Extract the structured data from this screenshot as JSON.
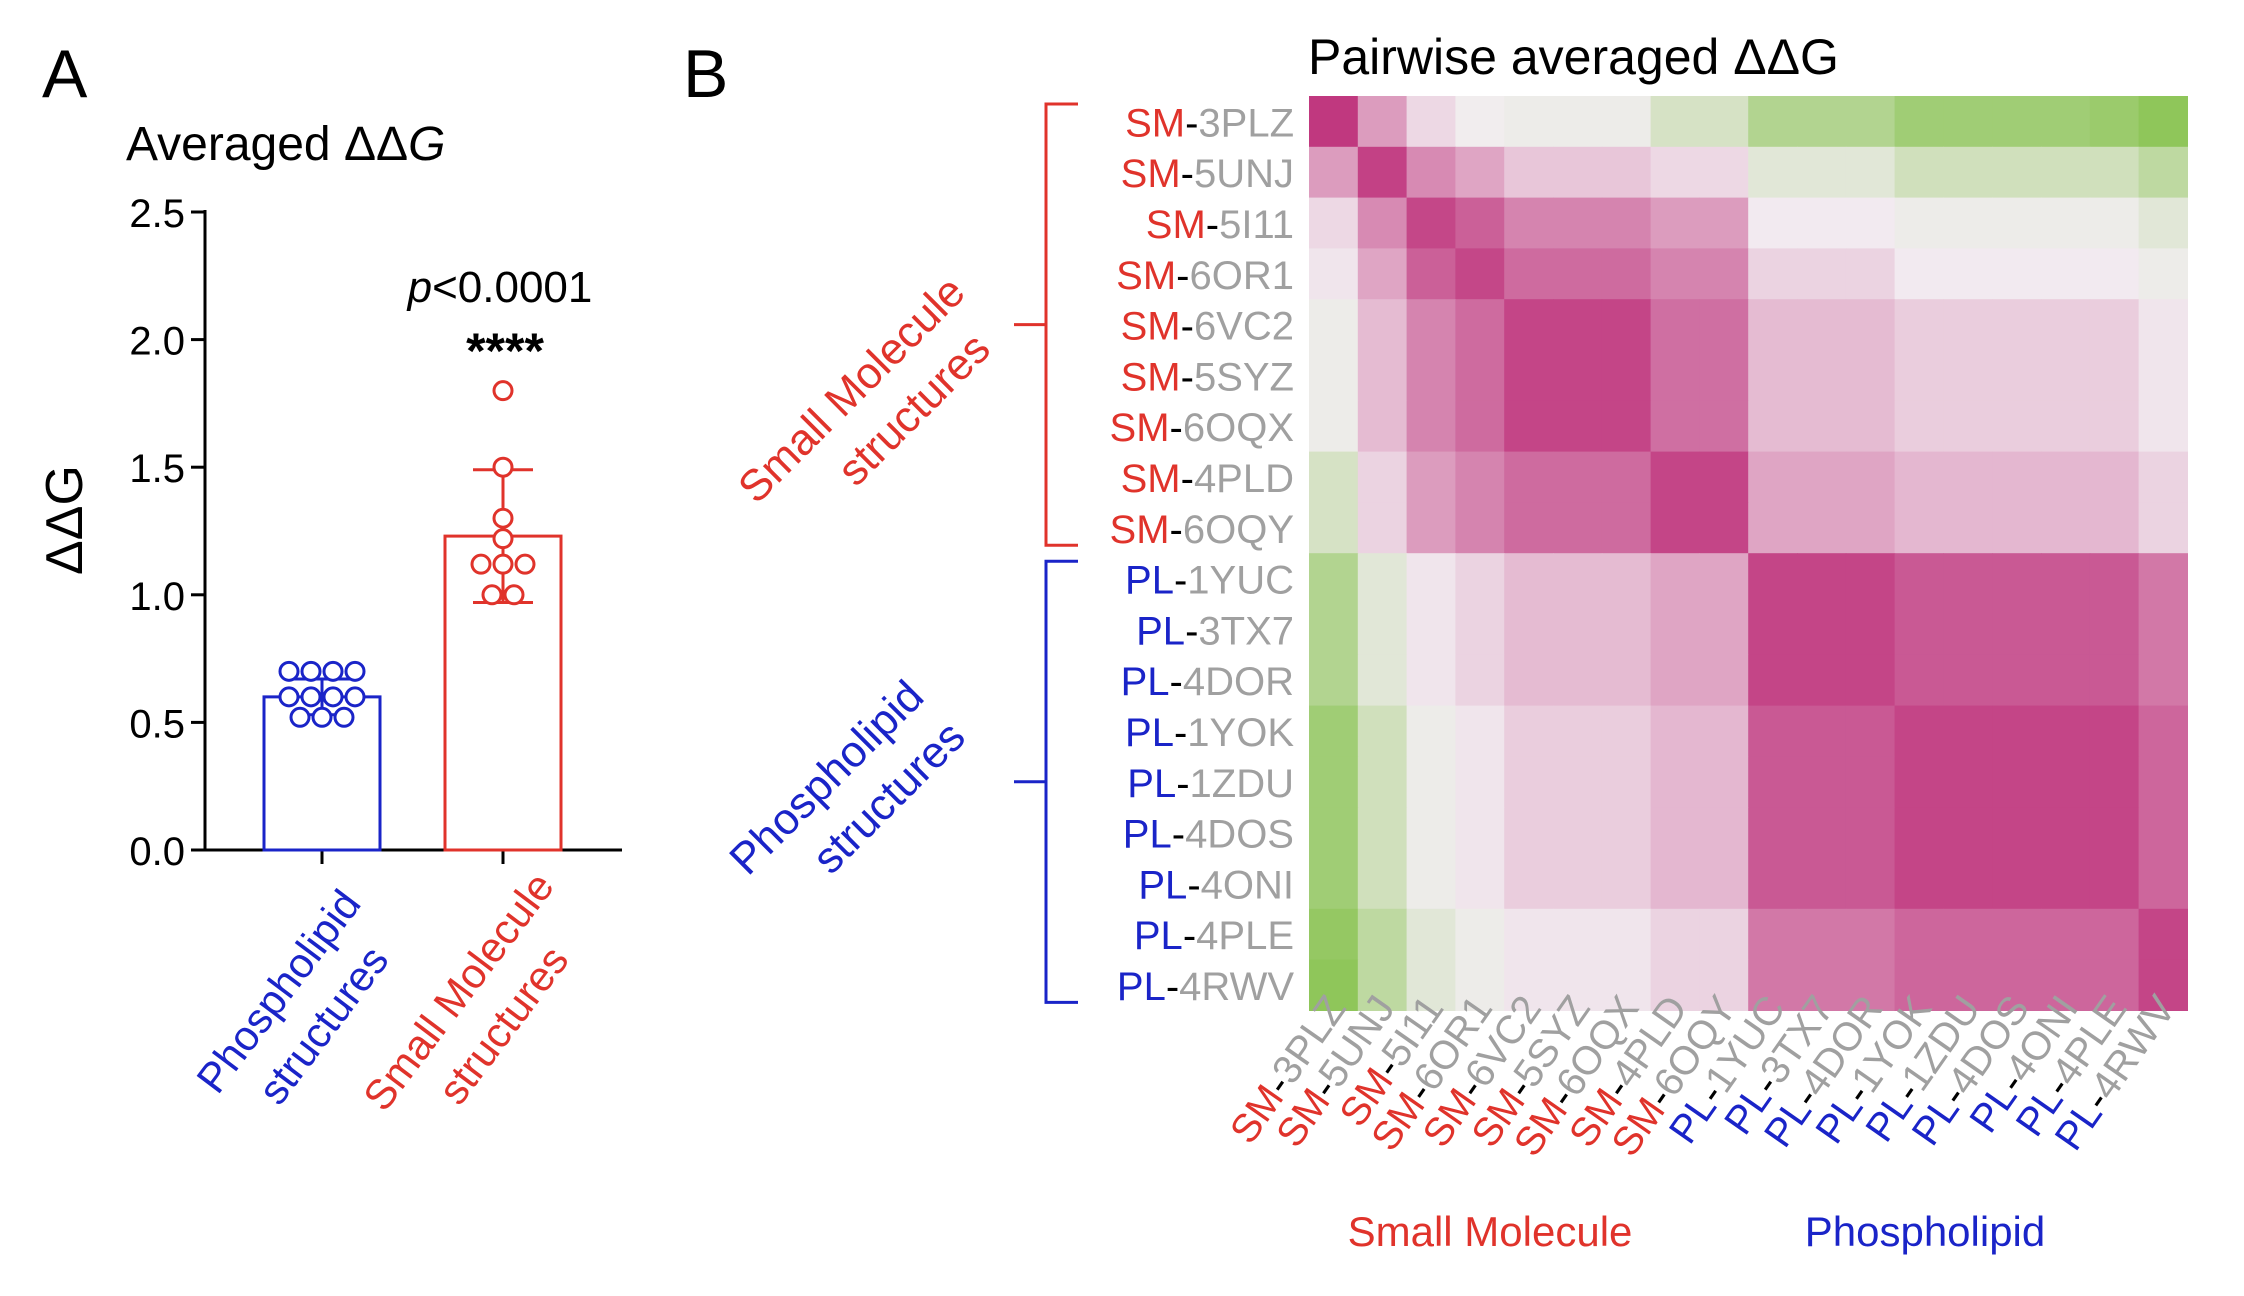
{
  "colors": {
    "small_molecule": "#e0332b",
    "phospholipid": "#1a24c8",
    "pdb_gray": "#a0a0a0",
    "high": "#c0387f",
    "mid": "#f3eef2",
    "low": "#7dbf3f"
  },
  "chart_data": [
    {
      "type": "bar",
      "panel_letter": "A",
      "title": "Averaged ΔΔG",
      "title_prefix": "Averaged ΔΔ",
      "title_italic": "G",
      "ylabel": "ΔΔG",
      "ylim": [
        0,
        2.5
      ],
      "yticks": [
        "0.0",
        "0.5",
        "1.0",
        "1.5",
        "2.0",
        "2.5"
      ],
      "categories": [
        [
          "Phospholipid",
          "structures"
        ],
        [
          "Small Molecule",
          "structures"
        ]
      ],
      "series": [
        {
          "category": "Phospholipid structures",
          "mean": 0.6,
          "error": [
            0.53,
            0.67
          ],
          "points": [
            0.7,
            0.7,
            0.7,
            0.7,
            0.6,
            0.6,
            0.6,
            0.6,
            0.52,
            0.52,
            0.52
          ]
        },
        {
          "category": "Small Molecule structures",
          "mean": 1.23,
          "error": [
            0.97,
            1.49
          ],
          "points": [
            1.8,
            1.5,
            1.3,
            1.22,
            1.12,
            1.12,
            1.12,
            1.0,
            1.0
          ]
        }
      ],
      "annotation": {
        "p_italic": "p",
        "p_rest": "<0.0001",
        "stars": "****"
      }
    },
    {
      "type": "heatmap",
      "panel_letter": "B",
      "title": "Pairwise averaged ΔΔG",
      "labels": [
        {
          "group": "SM",
          "id": "3PLZ"
        },
        {
          "group": "SM",
          "id": "5UNJ"
        },
        {
          "group": "SM",
          "id": "5I11"
        },
        {
          "group": "SM",
          "id": "6OR1"
        },
        {
          "group": "SM",
          "id": "6VC2"
        },
        {
          "group": "SM",
          "id": "5SYZ"
        },
        {
          "group": "SM",
          "id": "6OQX"
        },
        {
          "group": "SM",
          "id": "4PLD"
        },
        {
          "group": "SM",
          "id": "6OQY"
        },
        {
          "group": "PL",
          "id": "1YUC"
        },
        {
          "group": "PL",
          "id": "3TX7"
        },
        {
          "group": "PL",
          "id": "4DOR"
        },
        {
          "group": "PL",
          "id": "1YOK"
        },
        {
          "group": "PL",
          "id": "1ZDU"
        },
        {
          "group": "PL",
          "id": "4DOS"
        },
        {
          "group": "PL",
          "id": "4ONI"
        },
        {
          "group": "PL",
          "id": "4PLE"
        },
        {
          "group": "PL",
          "id": "4RWV"
        }
      ],
      "col_labels": [
        "3PLZ",
        "5UNJ",
        "5I11",
        "6OR1",
        "6VC2",
        "5SYZ",
        "6OQX",
        "4PLD",
        "6OQY",
        "1YUC",
        "3TX7",
        "4DOR",
        "1YOK",
        "1ZDU",
        "4DOS",
        "4ONI",
        "4PLE",
        "4RWV"
      ],
      "matrix": [
        [
          1.0,
          0.45,
          0.12,
          -0.02,
          -0.05,
          -0.05,
          -0.05,
          -0.25,
          -0.25,
          -0.55,
          -0.55,
          -0.55,
          -0.7,
          -0.7,
          -0.7,
          -0.7,
          -0.75,
          -0.85
        ],
        [
          0.45,
          0.95,
          0.55,
          0.4,
          0.22,
          0.22,
          0.22,
          0.12,
          0.12,
          -0.15,
          -0.15,
          -0.15,
          -0.3,
          -0.3,
          -0.3,
          -0.3,
          -0.3,
          -0.45
        ],
        [
          0.12,
          0.55,
          0.92,
          0.78,
          0.58,
          0.58,
          0.58,
          0.45,
          0.45,
          0.02,
          0.02,
          0.02,
          -0.05,
          -0.05,
          -0.05,
          -0.05,
          -0.05,
          -0.15
        ],
        [
          0.05,
          0.4,
          0.78,
          0.92,
          0.72,
          0.72,
          0.72,
          0.58,
          0.58,
          0.15,
          0.15,
          0.15,
          0.02,
          0.02,
          0.02,
          0.02,
          0.02,
          -0.05
        ],
        [
          -0.05,
          0.28,
          0.58,
          0.72,
          0.93,
          0.93,
          0.93,
          0.7,
          0.7,
          0.28,
          0.28,
          0.28,
          0.18,
          0.18,
          0.18,
          0.18,
          0.18,
          0.05
        ],
        [
          -0.05,
          0.28,
          0.58,
          0.72,
          0.93,
          0.93,
          0.93,
          0.7,
          0.7,
          0.28,
          0.28,
          0.28,
          0.18,
          0.18,
          0.18,
          0.18,
          0.18,
          0.05
        ],
        [
          -0.05,
          0.28,
          0.58,
          0.72,
          0.93,
          0.93,
          0.93,
          0.7,
          0.7,
          0.28,
          0.28,
          0.28,
          0.18,
          0.18,
          0.18,
          0.18,
          0.18,
          0.05
        ],
        [
          -0.25,
          0.15,
          0.45,
          0.58,
          0.72,
          0.72,
          0.72,
          0.93,
          0.93,
          0.4,
          0.4,
          0.4,
          0.3,
          0.3,
          0.3,
          0.3,
          0.3,
          0.15
        ],
        [
          -0.25,
          0.15,
          0.45,
          0.58,
          0.72,
          0.72,
          0.72,
          0.93,
          0.93,
          0.4,
          0.4,
          0.4,
          0.3,
          0.3,
          0.3,
          0.3,
          0.3,
          0.15
        ],
        [
          -0.55,
          -0.15,
          0.05,
          0.15,
          0.28,
          0.28,
          0.28,
          0.4,
          0.4,
          0.93,
          0.93,
          0.93,
          0.82,
          0.82,
          0.82,
          0.82,
          0.82,
          0.65
        ],
        [
          -0.55,
          -0.15,
          0.05,
          0.15,
          0.28,
          0.28,
          0.28,
          0.4,
          0.4,
          0.93,
          0.93,
          0.93,
          0.82,
          0.82,
          0.82,
          0.82,
          0.82,
          0.65
        ],
        [
          -0.55,
          -0.15,
          0.05,
          0.15,
          0.28,
          0.28,
          0.28,
          0.4,
          0.4,
          0.93,
          0.93,
          0.93,
          0.82,
          0.82,
          0.82,
          0.82,
          0.82,
          0.65
        ],
        [
          -0.7,
          -0.3,
          -0.05,
          0.05,
          0.18,
          0.18,
          0.18,
          0.3,
          0.3,
          0.82,
          0.82,
          0.82,
          0.93,
          0.93,
          0.93,
          0.93,
          0.93,
          0.75
        ],
        [
          -0.7,
          -0.3,
          -0.05,
          0.05,
          0.18,
          0.18,
          0.18,
          0.3,
          0.3,
          0.82,
          0.82,
          0.82,
          0.93,
          0.93,
          0.93,
          0.93,
          0.93,
          0.75
        ],
        [
          -0.7,
          -0.3,
          -0.05,
          0.05,
          0.18,
          0.18,
          0.18,
          0.3,
          0.3,
          0.82,
          0.82,
          0.82,
          0.93,
          0.93,
          0.93,
          0.93,
          0.93,
          0.75
        ],
        [
          -0.7,
          -0.3,
          -0.05,
          0.05,
          0.18,
          0.18,
          0.18,
          0.3,
          0.3,
          0.82,
          0.82,
          0.82,
          0.93,
          0.93,
          0.93,
          0.93,
          0.93,
          0.75
        ],
        [
          -0.8,
          -0.45,
          -0.15,
          -0.05,
          0.05,
          0.05,
          0.05,
          0.15,
          0.15,
          0.65,
          0.65,
          0.65,
          0.75,
          0.75,
          0.75,
          0.75,
          0.75,
          0.93
        ],
        [
          -0.85,
          -0.45,
          -0.15,
          -0.05,
          0.05,
          0.05,
          0.05,
          0.15,
          0.15,
          0.65,
          0.65,
          0.65,
          0.75,
          0.75,
          0.75,
          0.75,
          0.75,
          0.93
        ]
      ],
      "row_groups": [
        {
          "name_lines": [
            "Small Molecule",
            "structures"
          ],
          "group": "SM"
        },
        {
          "name_lines": [
            "Phospholipid",
            "structures"
          ],
          "group": "PL"
        }
      ],
      "col_groups": [
        {
          "name": "Small Molecule",
          "group": "SM"
        },
        {
          "name": "Phospholipid",
          "group": "PL"
        }
      ]
    }
  ]
}
